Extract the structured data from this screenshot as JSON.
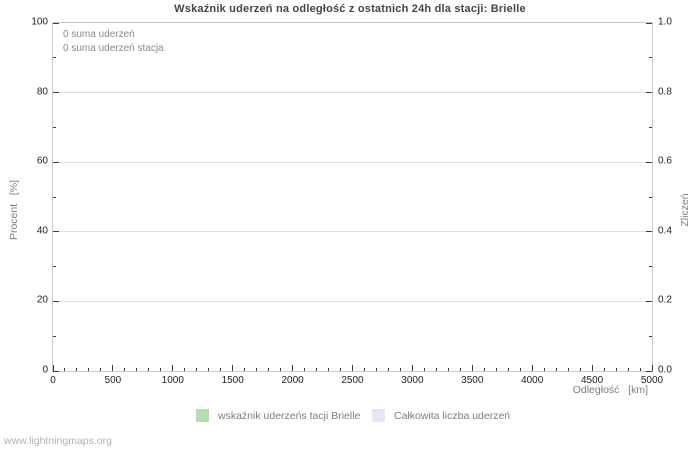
{
  "watermark": "www.lightningmaps.org",
  "colors": {
    "background": "#ffffff",
    "title_text": "#454545",
    "axis_frame": "#c9c9c9",
    "gridline": "#dedede",
    "tick_mark": "#3c3c3c",
    "tick_label": "#1f1f1f",
    "secondary_text": "#7d7d7d",
    "annotation_text": "#8a8a8a",
    "watermark_text": "#b2b2b2",
    "series_station": "#b3deb3",
    "series_total": "#e6e6fa"
  },
  "chart_data": {
    "type": "line",
    "title": "Wskaźnik uderzeń na odległość z ostatnich 24h dla stacji: Brielle",
    "annotations": [
      "0 suma uderzeń",
      "0 suma uderzeń stacja"
    ],
    "grid": "horizontal-major-only",
    "legend_position": "bottom-center",
    "x_axis": {
      "label": "Odległość   [km]",
      "min": 0,
      "max": 5000,
      "major_ticks": [
        0,
        500,
        1000,
        1500,
        2000,
        2500,
        3000,
        3500,
        4000,
        4500,
        5000
      ],
      "major_tick_labels": [
        "0",
        "500",
        "1000",
        "1500",
        "2000",
        "2500",
        "3000",
        "3500",
        "4000",
        "4500",
        "5000"
      ],
      "minor_step": 100
    },
    "y_axis_left": {
      "label": "Procent   [%]",
      "min": 0,
      "max": 100,
      "major_ticks": [
        0,
        20,
        40,
        60,
        80,
        100
      ],
      "major_tick_labels": [
        "0",
        "20",
        "40",
        "60",
        "80",
        "100"
      ],
      "minor_step": 10
    },
    "y_axis_right": {
      "label": "Zliczeń",
      "min": 0,
      "max": 1,
      "major_ticks": [
        0,
        0.2,
        0.4,
        0.6,
        0.8,
        1
      ],
      "major_tick_labels": [
        "0.0",
        "0.2",
        "0.4",
        "0.6",
        "0.8",
        "1.0"
      ],
      "minor_step": 0.1
    },
    "series": [
      {
        "name": "wskaźnik uderzeńs tacji Brielle",
        "color": "#b3deb3",
        "axis": "left",
        "values": []
      },
      {
        "name": "Całkowita liczba uderzeń",
        "color": "#e6e6fa",
        "axis": "right",
        "values": []
      }
    ]
  }
}
